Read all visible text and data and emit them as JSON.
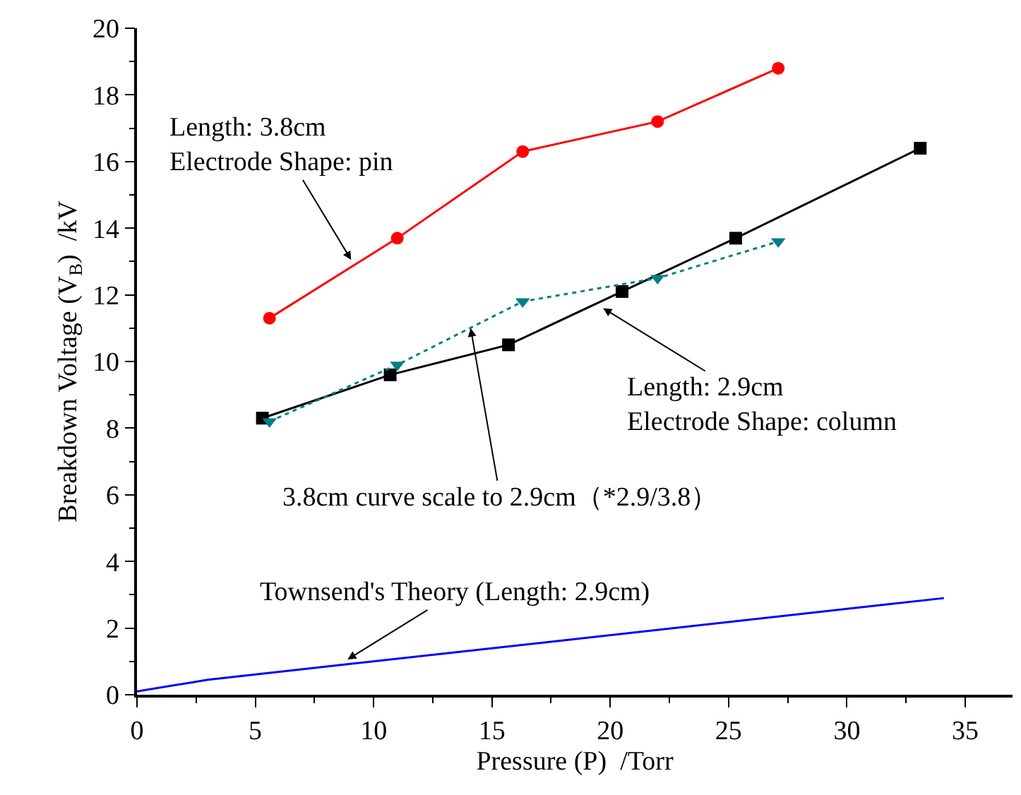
{
  "chart_data": {
    "type": "line",
    "xlabel": "Pressure (P)  /Torr",
    "ylabel": "Breakdown Voltage (V$_{B}$)  /kV",
    "xlim": [
      0,
      37
    ],
    "xticks": [
      0,
      5,
      10,
      15,
      20,
      25,
      30,
      35
    ],
    "ylim": [
      0,
      20
    ],
    "yticks": [
      0,
      2,
      4,
      6,
      8,
      10,
      12,
      14,
      16,
      18,
      20
    ],
    "series": [
      {
        "color": "#ff0000",
        "marker": "circle",
        "line_style": "solid",
        "x": [
          5.6,
          11.0,
          16.3,
          22.0,
          27.1
        ],
        "values": [
          11.3,
          13.7,
          16.3,
          17.2,
          18.8
        ]
      },
      {
        "color": "#000000",
        "marker": "square",
        "line_style": "solid",
        "x": [
          5.3,
          10.7,
          15.7,
          20.5,
          25.3,
          33.1
        ],
        "values": [
          8.3,
          9.6,
          10.5,
          12.1,
          13.7,
          16.4
        ]
      },
      {
        "color": "#008080",
        "marker": "triangle",
        "line_style": "dotted",
        "x": [
          5.6,
          11.0,
          16.3,
          22.0,
          27.1
        ],
        "values": [
          8.2,
          9.9,
          11.8,
          12.5,
          13.6
        ]
      },
      {
        "color": "#0000ff",
        "marker": "none",
        "line_style": "solid",
        "x": [
          0,
          3,
          34.1
        ],
        "values": [
          0.1,
          0.45,
          2.9
        ]
      }
    ],
    "annotations": [
      {
        "text": "Length: 3.8cm\nElectrode Shape: pin",
        "x": 9.05,
        "y": 13.05
      },
      {
        "text": "Length: 2.9cm\nElectrode Shape: column",
        "x": 19.7,
        "y": 11.6
      },
      {
        "text": "3.8cm curve scale to 2.9cm（*2.9/3.8）",
        "x": 14.1,
        "y": 11.0
      },
      {
        "text": "Townsend's Theory (Length: 2.9cm)",
        "x": 8.9,
        "y": 1.06
      }
    ]
  }
}
